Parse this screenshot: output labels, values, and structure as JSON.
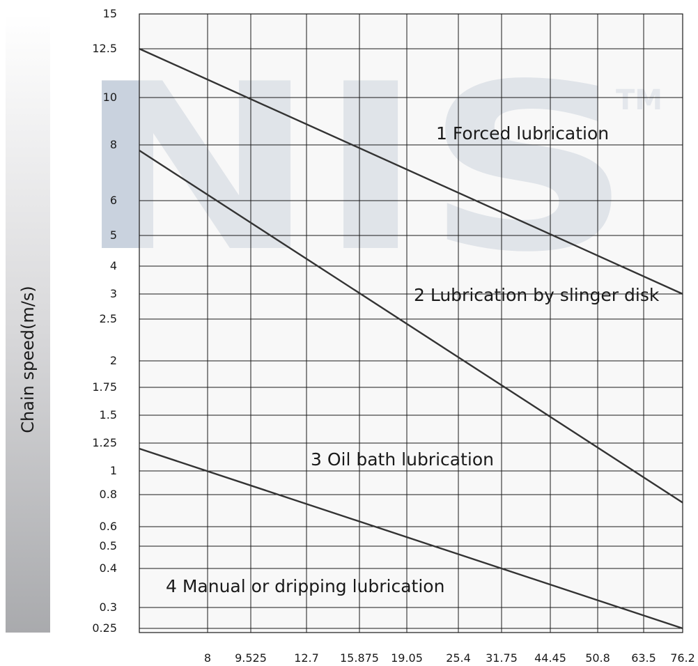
{
  "watermark": {
    "text": "NIS",
    "tm": "TM"
  },
  "chart_data": {
    "type": "line",
    "title": "",
    "xlabel": "",
    "ylabel": "Chain speed(m/s)",
    "grid": true,
    "x_ticks": [
      "8",
      "9.525",
      "12.7",
      "15.875",
      "19.05",
      "25.4",
      "31.75",
      "44.45",
      "50.8",
      "63.5",
      "76.2"
    ],
    "y_ticks": [
      "15",
      "12.5",
      "10",
      "8",
      "6",
      "5",
      "4",
      "3",
      "2.5",
      "2",
      "1.75",
      "1.5",
      "1.25",
      "1",
      "0.8",
      "0.6",
      "0.5",
      "0.4",
      "0.3",
      "0.25"
    ],
    "series": [
      {
        "name": "1 Forced lubrication",
        "points": [
          [
            "6.35",
            12.5
          ],
          [
            "76.2",
            3
          ]
        ]
      },
      {
        "name": "2 Lubrication by slinger disk",
        "points": [
          [
            "6.35",
            7.8
          ],
          [
            "76.2",
            0.75
          ]
        ]
      },
      {
        "name": "3 Oil bath lubrication",
        "points": [
          [
            "6.35",
            1.2
          ],
          [
            "76.2",
            0.25
          ]
        ]
      },
      {
        "name": "4 Manual or dripping lubrication",
        "points": []
      }
    ]
  }
}
